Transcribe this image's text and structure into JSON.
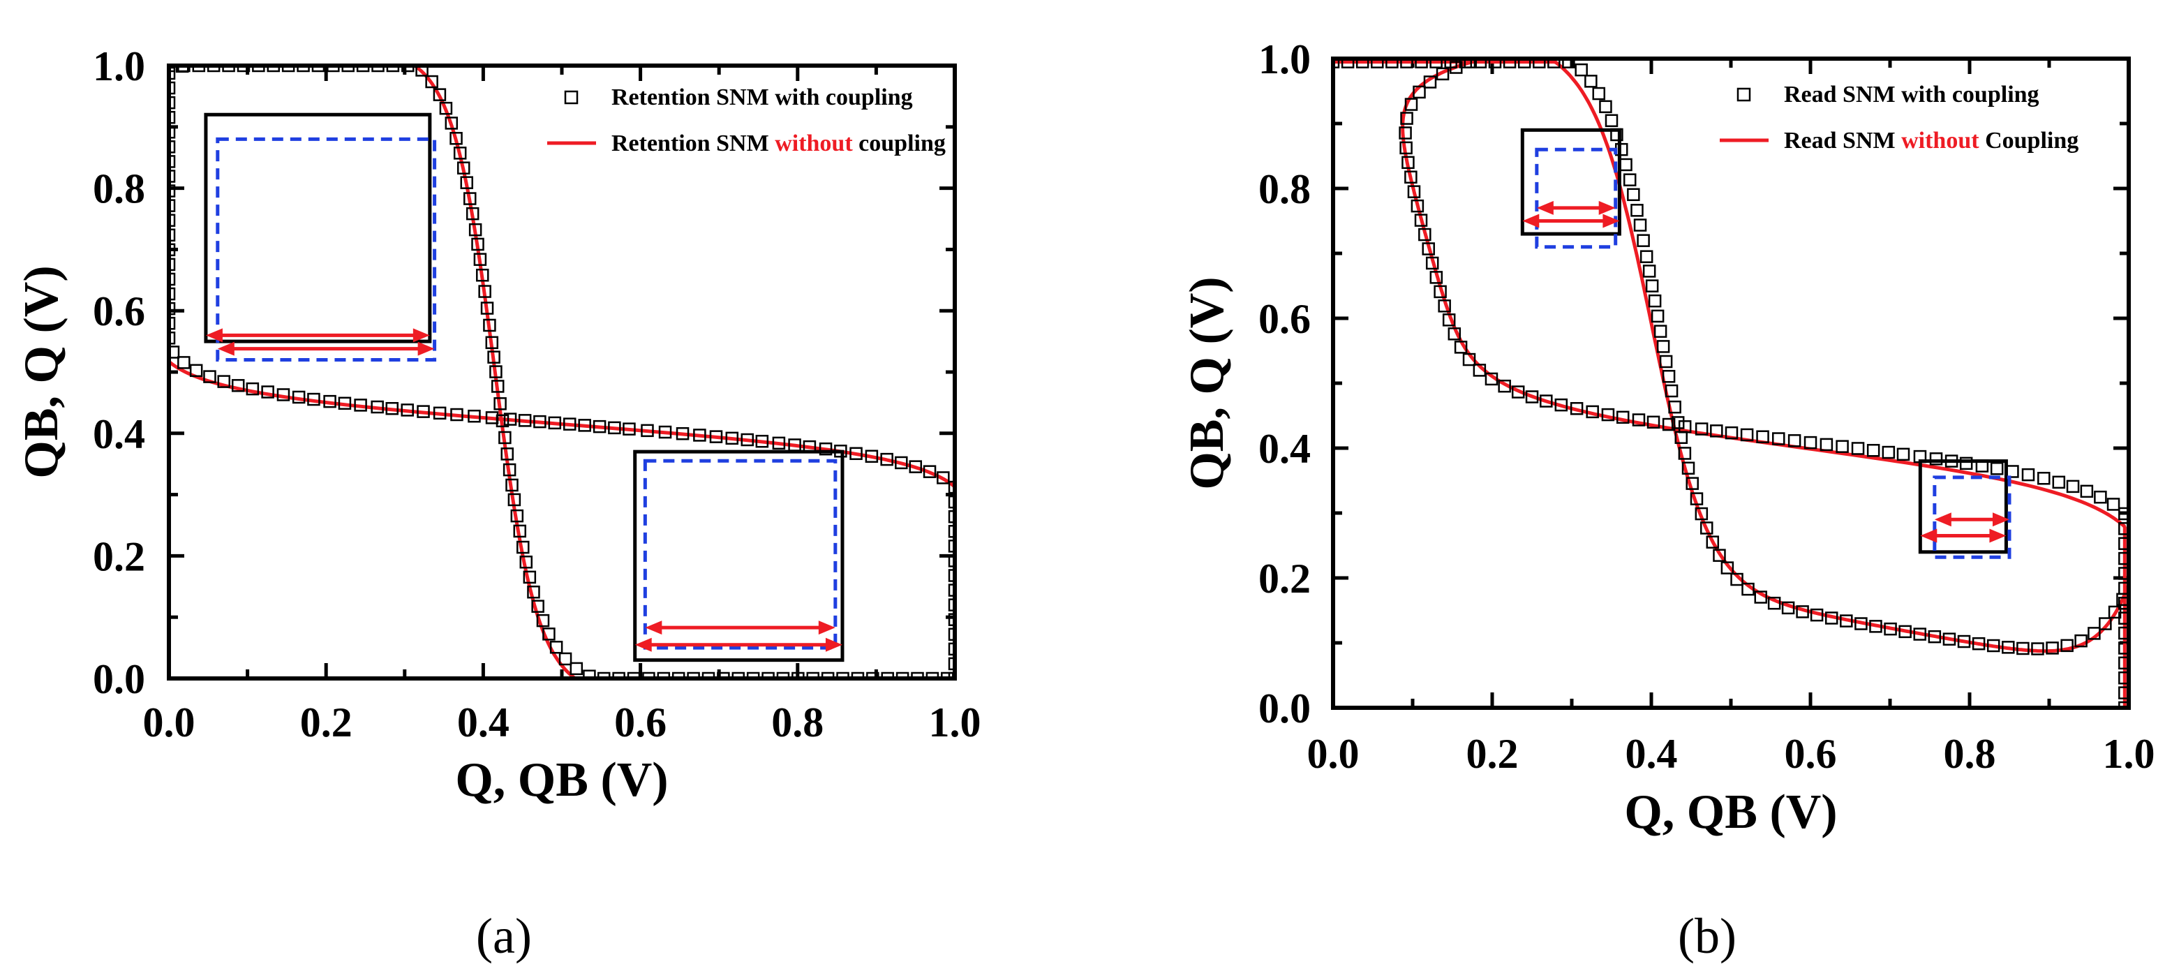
{
  "colors": {
    "curve": "#ee1c24",
    "markers": "#000000",
    "dashed_box": "#1f3fe0",
    "solid_box": "#000000",
    "arrow": "#ee1c24",
    "highlight_word": "#ee1c24"
  },
  "chart_data": [
    {
      "type": "line",
      "panel_label": "(a)",
      "xlabel": "Q, QB (V)",
      "ylabel": "QB, Q (V)",
      "xlim": [
        0,
        1
      ],
      "ylim": [
        0,
        1
      ],
      "xticks": [
        "0.0",
        "0.2",
        "0.4",
        "0.6",
        "0.8",
        "1.0"
      ],
      "yticks": [
        "0.0",
        "0.2",
        "0.4",
        "0.6",
        "0.8",
        "1.0"
      ],
      "legend": {
        "position": "top-right",
        "entries": [
          {
            "marker": "square",
            "parts": [
              {
                "text": "Retention SNM with coupling",
                "highlight": false
              }
            ]
          },
          {
            "marker": "line",
            "parts": [
              {
                "text": "Retention SNM ",
                "highlight": false
              },
              {
                "text": "without",
                "highlight": true
              },
              {
                "text": " coupling",
                "highlight": false
              }
            ]
          }
        ]
      },
      "curve_params": {
        "vm": 0.415,
        "k": 38,
        "p": 1.0,
        "c": 0.2,
        "g": 0.0,
        "vh": 1.0,
        "fall": 30
      },
      "marker_params": {
        "vm": 0.415,
        "k": 38,
        "p": 1.3,
        "c": 0.22,
        "g": 0.02,
        "vh": 1.0,
        "fall": 25
      },
      "snm_boxes": [
        {
          "kind": "solid",
          "x": [
            0.047,
            0.332
          ],
          "y": [
            0.55,
            0.92
          ]
        },
        {
          "kind": "dashed",
          "x": [
            0.062,
            0.338
          ],
          "y": [
            0.52,
            0.88
          ]
        },
        {
          "kind": "solid",
          "x": [
            0.593,
            0.857
          ],
          "y": [
            0.03,
            0.37
          ]
        },
        {
          "kind": "dashed",
          "x": [
            0.606,
            0.848
          ],
          "y": [
            0.05,
            0.355
          ]
        }
      ],
      "snm_arrows": [
        {
          "x": [
            0.047,
            0.332
          ],
          "y": 0.56
        },
        {
          "x": [
            0.062,
            0.338
          ],
          "y": 0.538
        },
        {
          "x": [
            0.606,
            0.848
          ],
          "y": 0.083
        },
        {
          "x": [
            0.593,
            0.857
          ],
          "y": 0.055
        }
      ]
    },
    {
      "type": "line",
      "panel_label": "(b)",
      "xlabel": "Q, QB (V)",
      "ylabel": "QB, Q (V)",
      "xlim": [
        0,
        1
      ],
      "ylim": [
        0,
        1
      ],
      "xticks": [
        "0.0",
        "0.2",
        "0.4",
        "0.6",
        "0.8",
        "1.0"
      ],
      "yticks": [
        "0.0",
        "0.2",
        "0.4",
        "0.6",
        "0.8",
        "1.0"
      ],
      "legend": {
        "position": "top-right",
        "entries": [
          {
            "marker": "square",
            "parts": [
              {
                "text": "Read SNM with coupling",
                "highlight": false
              }
            ]
          },
          {
            "marker": "line",
            "parts": [
              {
                "text": "Read SNM ",
                "highlight": false
              },
              {
                "text": "without",
                "highlight": true
              },
              {
                "text": " Coupling",
                "highlight": false
              }
            ]
          }
        ]
      },
      "curve_params": {
        "vm": 0.4,
        "k": 28,
        "p": 0.85,
        "c": 0.225,
        "g": 0.19,
        "vh": 0.995,
        "fall": 26,
        "vc": 0.19,
        "q": 20
      },
      "marker_params": {
        "vm": 0.41,
        "k": 32,
        "p": 1.0,
        "c": 0.22,
        "g": 0.185,
        "vh": 0.995,
        "fall": 22,
        "vc": 0.19,
        "q": 20
      },
      "snm_boxes": [
        {
          "kind": "solid",
          "x": [
            0.238,
            0.36
          ],
          "y": [
            0.73,
            0.89
          ]
        },
        {
          "kind": "dashed",
          "x": [
            0.256,
            0.355
          ],
          "y": [
            0.71,
            0.86
          ]
        },
        {
          "kind": "solid",
          "x": [
            0.738,
            0.846
          ],
          "y": [
            0.24,
            0.38
          ]
        },
        {
          "kind": "dashed",
          "x": [
            0.756,
            0.85
          ],
          "y": [
            0.232,
            0.355
          ]
        }
      ],
      "snm_arrows": [
        {
          "x": [
            0.256,
            0.355
          ],
          "y": 0.77
        },
        {
          "x": [
            0.238,
            0.36
          ],
          "y": 0.75
        },
        {
          "x": [
            0.756,
            0.85
          ],
          "y": 0.29
        },
        {
          "x": [
            0.738,
            0.846
          ],
          "y": 0.265
        }
      ]
    }
  ]
}
